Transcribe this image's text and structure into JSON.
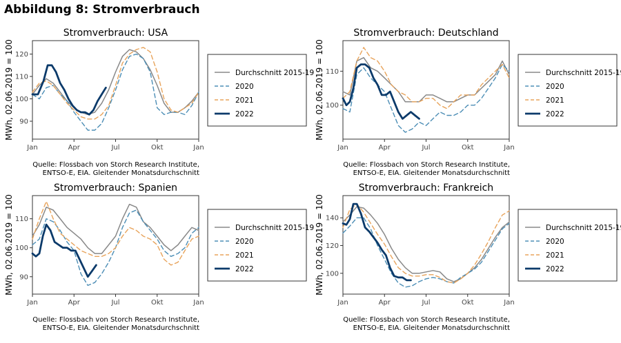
{
  "page_title": "Abbildung 8: Stromverbrauch",
  "legend": {
    "series_names": [
      "Durchschnitt 2015-19",
      "2020",
      "2021",
      "2022"
    ],
    "series_colors": [
      "#888888",
      "#4b8db5",
      "#e8a35a",
      "#0b3a6a"
    ]
  },
  "source": {
    "line1": "Quelle: Flossbach von Storch Research Institute,",
    "line2": "ENTSO-E, EIA. Gleitender Monatsdurchschnitt"
  },
  "chart_data": [
    {
      "type": "line",
      "title": "Stromverbrauch: USA",
      "ylabel": "MWh, 02.06.2019 = 100",
      "xlabel": "",
      "x_ticks": [
        {
          "label": "Jan",
          "month": 0
        },
        {
          "label": "Apr",
          "month": 3
        },
        {
          "label": "Jul",
          "month": 6
        },
        {
          "label": "Okt",
          "month": 9
        },
        {
          "label": "Jan",
          "month": 12
        }
      ],
      "xlim": [
        0,
        12
      ],
      "ylim": [
        82,
        126
      ],
      "y_ticks": [
        90,
        100,
        110,
        120
      ],
      "series": [
        {
          "name": "Durchschnitt 2015-19",
          "x": [
            0,
            0.5,
            1,
            1.5,
            2,
            2.5,
            3,
            3.5,
            4,
            4.5,
            5,
            5.5,
            6,
            6.5,
            7,
            7.5,
            8,
            8.5,
            9,
            9.5,
            10,
            10.5,
            11,
            11.5,
            12
          ],
          "values": [
            102,
            106,
            109,
            107,
            103,
            99,
            96,
            94,
            93,
            94,
            98,
            104,
            112,
            119,
            122,
            121,
            118,
            113,
            106,
            98,
            94,
            94,
            96,
            99,
            103
          ]
        },
        {
          "name": "2020",
          "x": [
            0,
            0.5,
            1,
            1.5,
            2,
            2.5,
            3,
            3.5,
            4,
            4.5,
            5,
            5.5,
            6,
            6.5,
            7,
            7.5,
            8,
            8.5,
            9,
            9.5,
            10,
            10.5,
            11,
            11.5,
            12
          ],
          "values": [
            102,
            100,
            105,
            106,
            102,
            99,
            94,
            90,
            86,
            86,
            89,
            96,
            104,
            113,
            119,
            120,
            118,
            112,
            96,
            93,
            94,
            94,
            93,
            97,
            103
          ]
        },
        {
          "name": "2021",
          "x": [
            0,
            0.5,
            1,
            1.5,
            2,
            2.5,
            3,
            3.5,
            4,
            4.5,
            5,
            5.5,
            6,
            6.5,
            7,
            7.5,
            8,
            8.5,
            9,
            9.5,
            10,
            10.5,
            11,
            11.5,
            12
          ],
          "values": [
            103,
            107,
            108,
            106,
            102,
            98,
            95,
            92,
            91,
            91,
            93,
            97,
            106,
            116,
            120,
            122,
            123,
            121,
            112,
            100,
            95,
            94,
            96,
            98,
            103
          ]
        },
        {
          "name": "2022",
          "x": [
            0,
            0.4,
            0.8,
            1.1,
            1.4,
            1.7,
            2,
            2.3,
            2.6,
            2.9,
            3.2,
            3.5,
            3.8,
            4.1,
            4.4,
            4.7,
            5,
            5.3
          ],
          "values": [
            102,
            102,
            108,
            115,
            115,
            112,
            107,
            104,
            100,
            97,
            95,
            94,
            94,
            93,
            95,
            99,
            102,
            105
          ]
        }
      ]
    },
    {
      "type": "line",
      "title": "Stromverbrauch: Deutschland",
      "ylabel": "MWh, 02.06.2019 = 100",
      "xlabel": "",
      "x_ticks": [
        {
          "label": "Jan",
          "month": 0
        },
        {
          "label": "Apr",
          "month": 3
        },
        {
          "label": "Jul",
          "month": 6
        },
        {
          "label": "Okt",
          "month": 9
        },
        {
          "label": "Jan",
          "month": 12
        }
      ],
      "xlim": [
        0,
        12
      ],
      "ylim": [
        90,
        119
      ],
      "y_ticks": [
        100,
        110
      ],
      "series": [
        {
          "name": "Durchschnitt 2015-19",
          "x": [
            0,
            0.5,
            1,
            1.5,
            2,
            2.5,
            3,
            3.5,
            4,
            4.5,
            5,
            5.5,
            6,
            6.5,
            7,
            7.5,
            8,
            8.5,
            9,
            9.5,
            10,
            10.5,
            11,
            11.5,
            12
          ],
          "values": [
            104,
            103,
            113,
            114,
            111,
            110,
            108,
            106,
            104,
            101,
            101,
            101,
            103,
            103,
            102,
            101,
            101,
            102,
            103,
            103,
            105,
            107,
            109,
            113,
            109
          ]
        },
        {
          "name": "2020",
          "x": [
            0,
            0.5,
            1,
            1.5,
            2,
            2.5,
            3,
            3.5,
            4,
            4.5,
            5,
            5.5,
            6,
            6.5,
            7,
            7.5,
            8,
            8.5,
            9,
            9.5,
            10,
            10.5,
            11,
            11.5,
            12
          ],
          "values": [
            99,
            98,
            109,
            111,
            108,
            106,
            104,
            99,
            94,
            92,
            93,
            95,
            94,
            96,
            98,
            97,
            97,
            98,
            100,
            100,
            102,
            105,
            108,
            112,
            110
          ]
        },
        {
          "name": "2021",
          "x": [
            0,
            0.5,
            1,
            1.5,
            2,
            2.5,
            3,
            3.5,
            4,
            4.5,
            5,
            5.5,
            6,
            6.5,
            7,
            7.5,
            8,
            8.5,
            9,
            9.5,
            10,
            10.5,
            11,
            11.5,
            12
          ],
          "values": [
            102,
            104,
            113,
            117,
            114,
            113,
            110,
            106,
            104,
            103,
            101,
            101,
            102,
            102,
            100,
            99,
            101,
            103,
            103,
            103,
            106,
            108,
            110,
            112,
            108
          ]
        },
        {
          "name": "2022",
          "x": [
            0,
            0.25,
            0.5,
            0.75,
            1,
            1.3,
            1.6,
            1.9,
            2.2,
            2.5,
            2.8,
            3.1,
            3.4,
            3.7,
            4,
            4.3,
            4.6,
            4.9,
            5.2,
            5.5
          ],
          "values": [
            102,
            100,
            101,
            105,
            111,
            112,
            112,
            111,
            108,
            106,
            103,
            103,
            104,
            101,
            98,
            96,
            97,
            98,
            97,
            96
          ]
        }
      ]
    },
    {
      "type": "line",
      "title": "Stromverbrauch: Spanien",
      "ylabel": "MWh, 02.06.2019 = 100",
      "xlabel": "",
      "x_ticks": [
        {
          "label": "Jan",
          "month": 0
        },
        {
          "label": "Apr",
          "month": 3
        },
        {
          "label": "Jul",
          "month": 6
        },
        {
          "label": "Okt",
          "month": 9
        },
        {
          "label": "Jan",
          "month": 12
        }
      ],
      "xlim": [
        0,
        12
      ],
      "ylim": [
        84,
        118
      ],
      "y_ticks": [
        90,
        100,
        110
      ],
      "series": [
        {
          "name": "Durchschnitt 2015-19",
          "x": [
            0,
            0.5,
            1,
            1.5,
            2,
            2.5,
            3,
            3.5,
            4,
            4.5,
            5,
            5.5,
            6,
            6.5,
            7,
            7.5,
            8,
            8.5,
            9,
            9.5,
            10,
            10.5,
            11,
            11.5,
            12
          ],
          "values": [
            104,
            108,
            114,
            113,
            110,
            107,
            105,
            103,
            100,
            98,
            98,
            101,
            104,
            110,
            115,
            114,
            109,
            107,
            104,
            101,
            99,
            101,
            104,
            107,
            106
          ]
        },
        {
          "name": "2020",
          "x": [
            0,
            0.5,
            1,
            1.5,
            2,
            2.5,
            3,
            3.5,
            4,
            4.5,
            5,
            5.5,
            6,
            6.5,
            7,
            7.5,
            8,
            8.5,
            9,
            9.5,
            10,
            10.5,
            11,
            11.5,
            12
          ],
          "values": [
            101,
            103,
            110,
            109,
            106,
            102,
            99,
            91,
            87,
            88,
            91,
            95,
            100,
            107,
            112,
            113,
            109,
            106,
            103,
            99,
            97,
            98,
            100,
            105,
            107
          ]
        },
        {
          "name": "2021",
          "x": [
            0,
            0.5,
            1,
            1.5,
            2,
            2.5,
            3,
            3.5,
            4,
            4.5,
            5,
            5.5,
            6,
            6.5,
            7,
            7.5,
            8,
            8.5,
            9,
            9.5,
            10,
            10.5,
            11,
            11.5,
            12
          ],
          "values": [
            103,
            110,
            116,
            110,
            105,
            103,
            101,
            99,
            98,
            97,
            97,
            98,
            100,
            104,
            107,
            106,
            104,
            103,
            101,
            96,
            94,
            95,
            99,
            103,
            104
          ]
        },
        {
          "name": "2022",
          "x": [
            0,
            0.25,
            0.5,
            0.75,
            1,
            1.3,
            1.6,
            1.9,
            2.2,
            2.5,
            2.8,
            3.1,
            3.4,
            3.7,
            4,
            4.3,
            4.6
          ],
          "values": [
            98,
            97,
            98,
            104,
            108,
            106,
            102,
            101,
            100,
            100,
            99,
            99,
            96,
            93,
            90,
            92,
            94
          ]
        }
      ]
    },
    {
      "type": "line",
      "title": "Stromverbrauch: Frankreich",
      "ylabel": "MWh, 02.06.2019 = 100",
      "xlabel": "",
      "x_ticks": [
        {
          "label": "Jan",
          "month": 0
        },
        {
          "label": "Apr",
          "month": 3
        },
        {
          "label": "Jul",
          "month": 6
        },
        {
          "label": "Okt",
          "month": 9
        },
        {
          "label": "Jan",
          "month": 12
        }
      ],
      "xlim": [
        0,
        12
      ],
      "ylim": [
        85,
        156
      ],
      "y_ticks": [
        100,
        120,
        140
      ],
      "series": [
        {
          "name": "Durchschnitt 2015-19",
          "x": [
            0,
            0.5,
            1,
            1.5,
            2,
            2.5,
            3,
            3.5,
            4,
            4.5,
            5,
            5.5,
            6,
            6.5,
            7,
            7.5,
            8,
            8.5,
            9,
            9.5,
            10,
            10.5,
            11,
            11.5,
            12
          ],
          "values": [
            137,
            142,
            148,
            147,
            142,
            136,
            128,
            118,
            110,
            104,
            100,
            100,
            101,
            102,
            101,
            96,
            94,
            96,
            100,
            104,
            110,
            118,
            126,
            133,
            137
          ]
        },
        {
          "name": "2020",
          "x": [
            0,
            0.5,
            1,
            1.5,
            2,
            2.5,
            3,
            3.5,
            4,
            4.5,
            5,
            5.5,
            6,
            6.5,
            7,
            7.5,
            8,
            8.5,
            9,
            9.5,
            10,
            10.5,
            11,
            11.5,
            12
          ],
          "values": [
            129,
            134,
            140,
            140,
            132,
            120,
            110,
            100,
            93,
            90,
            91,
            94,
            96,
            97,
            96,
            94,
            93,
            97,
            100,
            103,
            108,
            116,
            124,
            132,
            136
          ]
        },
        {
          "name": "2021",
          "x": [
            0,
            0.5,
            1,
            1.5,
            2,
            2.5,
            3,
            3.5,
            4,
            4.5,
            5,
            5.5,
            6,
            6.5,
            7,
            7.5,
            8,
            8.5,
            9,
            9.5,
            10,
            10.5,
            11,
            11.5,
            12
          ],
          "values": [
            133,
            146,
            150,
            144,
            136,
            128,
            121,
            112,
            104,
            100,
            98,
            98,
            99,
            99,
            97,
            94,
            93,
            96,
            100,
            106,
            114,
            123,
            133,
            142,
            145
          ]
        },
        {
          "name": "2022",
          "x": [
            0,
            0.25,
            0.5,
            0.75,
            1,
            1.3,
            1.6,
            1.9,
            2.2,
            2.5,
            2.8,
            3.1,
            3.4,
            3.7,
            4,
            4.3,
            4.6,
            4.9
          ],
          "values": [
            136,
            135,
            139,
            150,
            150,
            143,
            133,
            130,
            126,
            122,
            117,
            113,
            104,
            98,
            97,
            97,
            95,
            95
          ]
        }
      ]
    }
  ]
}
